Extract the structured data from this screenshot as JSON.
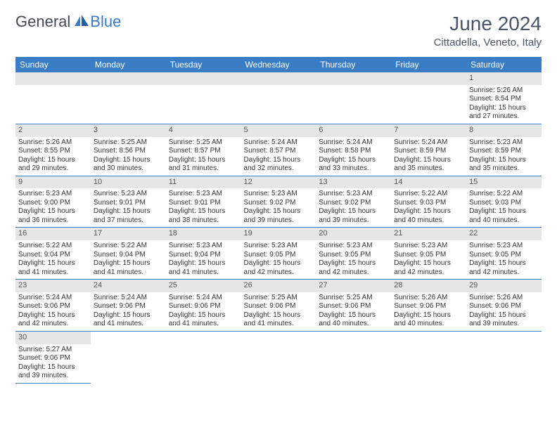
{
  "brand": {
    "general": "General",
    "blue": "Blue"
  },
  "header": {
    "title": "June 2024",
    "location": "Cittadella, Veneto, Italy"
  },
  "colors": {
    "accent": "#3b7dc4",
    "header_bg": "#3b7dc4",
    "daynum_bg": "#e6e6e6",
    "text": "#333333"
  },
  "weekdays": [
    "Sunday",
    "Monday",
    "Tuesday",
    "Wednesday",
    "Thursday",
    "Friday",
    "Saturday"
  ],
  "weeks": [
    [
      {
        "day": "",
        "lines": []
      },
      {
        "day": "",
        "lines": []
      },
      {
        "day": "",
        "lines": []
      },
      {
        "day": "",
        "lines": []
      },
      {
        "day": "",
        "lines": []
      },
      {
        "day": "",
        "lines": []
      },
      {
        "day": "1",
        "lines": [
          "Sunrise: 5:26 AM",
          "Sunset: 8:54 PM",
          "Daylight: 15 hours",
          "and 27 minutes."
        ]
      }
    ],
    [
      {
        "day": "2",
        "lines": [
          "Sunrise: 5:26 AM",
          "Sunset: 8:55 PM",
          "Daylight: 15 hours",
          "and 29 minutes."
        ]
      },
      {
        "day": "3",
        "lines": [
          "Sunrise: 5:25 AM",
          "Sunset: 8:56 PM",
          "Daylight: 15 hours",
          "and 30 minutes."
        ]
      },
      {
        "day": "4",
        "lines": [
          "Sunrise: 5:25 AM",
          "Sunset: 8:57 PM",
          "Daylight: 15 hours",
          "and 31 minutes."
        ]
      },
      {
        "day": "5",
        "lines": [
          "Sunrise: 5:24 AM",
          "Sunset: 8:57 PM",
          "Daylight: 15 hours",
          "and 32 minutes."
        ]
      },
      {
        "day": "6",
        "lines": [
          "Sunrise: 5:24 AM",
          "Sunset: 8:58 PM",
          "Daylight: 15 hours",
          "and 33 minutes."
        ]
      },
      {
        "day": "7",
        "lines": [
          "Sunrise: 5:24 AM",
          "Sunset: 8:59 PM",
          "Daylight: 15 hours",
          "and 35 minutes."
        ]
      },
      {
        "day": "8",
        "lines": [
          "Sunrise: 5:23 AM",
          "Sunset: 8:59 PM",
          "Daylight: 15 hours",
          "and 35 minutes."
        ]
      }
    ],
    [
      {
        "day": "9",
        "lines": [
          "Sunrise: 5:23 AM",
          "Sunset: 9:00 PM",
          "Daylight: 15 hours",
          "and 36 minutes."
        ]
      },
      {
        "day": "10",
        "lines": [
          "Sunrise: 5:23 AM",
          "Sunset: 9:01 PM",
          "Daylight: 15 hours",
          "and 37 minutes."
        ]
      },
      {
        "day": "11",
        "lines": [
          "Sunrise: 5:23 AM",
          "Sunset: 9:01 PM",
          "Daylight: 15 hours",
          "and 38 minutes."
        ]
      },
      {
        "day": "12",
        "lines": [
          "Sunrise: 5:23 AM",
          "Sunset: 9:02 PM",
          "Daylight: 15 hours",
          "and 39 minutes."
        ]
      },
      {
        "day": "13",
        "lines": [
          "Sunrise: 5:23 AM",
          "Sunset: 9:02 PM",
          "Daylight: 15 hours",
          "and 39 minutes."
        ]
      },
      {
        "day": "14",
        "lines": [
          "Sunrise: 5:22 AM",
          "Sunset: 9:03 PM",
          "Daylight: 15 hours",
          "and 40 minutes."
        ]
      },
      {
        "day": "15",
        "lines": [
          "Sunrise: 5:22 AM",
          "Sunset: 9:03 PM",
          "Daylight: 15 hours",
          "and 40 minutes."
        ]
      }
    ],
    [
      {
        "day": "16",
        "lines": [
          "Sunrise: 5:22 AM",
          "Sunset: 9:04 PM",
          "Daylight: 15 hours",
          "and 41 minutes."
        ]
      },
      {
        "day": "17",
        "lines": [
          "Sunrise: 5:22 AM",
          "Sunset: 9:04 PM",
          "Daylight: 15 hours",
          "and 41 minutes."
        ]
      },
      {
        "day": "18",
        "lines": [
          "Sunrise: 5:23 AM",
          "Sunset: 9:04 PM",
          "Daylight: 15 hours",
          "and 41 minutes."
        ]
      },
      {
        "day": "19",
        "lines": [
          "Sunrise: 5:23 AM",
          "Sunset: 9:05 PM",
          "Daylight: 15 hours",
          "and 42 minutes."
        ]
      },
      {
        "day": "20",
        "lines": [
          "Sunrise: 5:23 AM",
          "Sunset: 9:05 PM",
          "Daylight: 15 hours",
          "and 42 minutes."
        ]
      },
      {
        "day": "21",
        "lines": [
          "Sunrise: 5:23 AM",
          "Sunset: 9:05 PM",
          "Daylight: 15 hours",
          "and 42 minutes."
        ]
      },
      {
        "day": "22",
        "lines": [
          "Sunrise: 5:23 AM",
          "Sunset: 9:05 PM",
          "Daylight: 15 hours",
          "and 42 minutes."
        ]
      }
    ],
    [
      {
        "day": "23",
        "lines": [
          "Sunrise: 5:24 AM",
          "Sunset: 9:06 PM",
          "Daylight: 15 hours",
          "and 42 minutes."
        ]
      },
      {
        "day": "24",
        "lines": [
          "Sunrise: 5:24 AM",
          "Sunset: 9:06 PM",
          "Daylight: 15 hours",
          "and 41 minutes."
        ]
      },
      {
        "day": "25",
        "lines": [
          "Sunrise: 5:24 AM",
          "Sunset: 9:06 PM",
          "Daylight: 15 hours",
          "and 41 minutes."
        ]
      },
      {
        "day": "26",
        "lines": [
          "Sunrise: 5:25 AM",
          "Sunset: 9:06 PM",
          "Daylight: 15 hours",
          "and 41 minutes."
        ]
      },
      {
        "day": "27",
        "lines": [
          "Sunrise: 5:25 AM",
          "Sunset: 9:06 PM",
          "Daylight: 15 hours",
          "and 40 minutes."
        ]
      },
      {
        "day": "28",
        "lines": [
          "Sunrise: 5:26 AM",
          "Sunset: 9:06 PM",
          "Daylight: 15 hours",
          "and 40 minutes."
        ]
      },
      {
        "day": "29",
        "lines": [
          "Sunrise: 5:26 AM",
          "Sunset: 9:06 PM",
          "Daylight: 15 hours",
          "and 39 minutes."
        ]
      }
    ],
    [
      {
        "day": "30",
        "lines": [
          "Sunrise: 5:27 AM",
          "Sunset: 9:06 PM",
          "Daylight: 15 hours",
          "and 39 minutes."
        ]
      },
      {
        "day": "",
        "lines": []
      },
      {
        "day": "",
        "lines": []
      },
      {
        "day": "",
        "lines": []
      },
      {
        "day": "",
        "lines": []
      },
      {
        "day": "",
        "lines": []
      },
      {
        "day": "",
        "lines": []
      }
    ]
  ]
}
